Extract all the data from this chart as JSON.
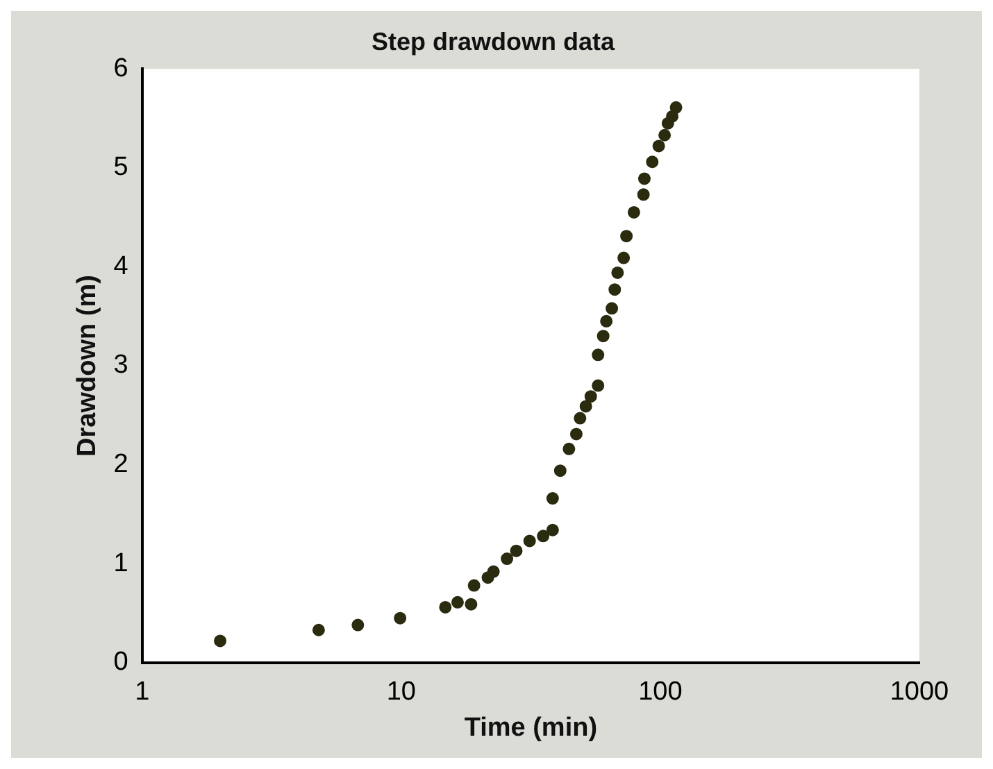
{
  "chart_data": {
    "type": "scatter",
    "title": "Step drawdown data",
    "xlabel": "Time (min)",
    "ylabel": "Drawdown (m)",
    "log": "x",
    "xlim": [
      1,
      1000
    ],
    "xticks": [
      1,
      10,
      100,
      1000
    ],
    "ylim": [
      0,
      6
    ],
    "yticks": [
      0,
      1,
      2,
      3,
      4,
      5,
      6
    ],
    "grid": false,
    "legend": false,
    "marker": "circle",
    "series": [
      {
        "color": "#2b2b10",
        "x": [
          2.0,
          4.8,
          6.8,
          9.9,
          14.8,
          16.5,
          18.6,
          19.1,
          21.6,
          22.7,
          25.6,
          27.8,
          31.3,
          35.3,
          38.4,
          38.4,
          41.1,
          44.4,
          47.4,
          49.0,
          51.6,
          53.9,
          57.5,
          57.5,
          60.2,
          61.9,
          65.0,
          66.7,
          68.4,
          72.2,
          74.0,
          79.1,
          86.1,
          86.8,
          93.1,
          98.6,
          103.9,
          107.0,
          111.2,
          115.0
        ],
        "values": [
          0.22,
          0.33,
          0.38,
          0.45,
          0.56,
          0.61,
          0.59,
          0.78,
          0.86,
          0.92,
          1.05,
          1.13,
          1.23,
          1.28,
          1.34,
          1.66,
          1.94,
          2.16,
          2.31,
          2.47,
          2.59,
          2.69,
          2.8,
          3.11,
          3.3,
          3.45,
          3.58,
          3.77,
          3.94,
          4.09,
          4.31,
          4.55,
          4.73,
          4.89,
          5.06,
          5.22,
          5.33,
          5.45,
          5.52,
          5.61
        ]
      }
    ]
  }
}
